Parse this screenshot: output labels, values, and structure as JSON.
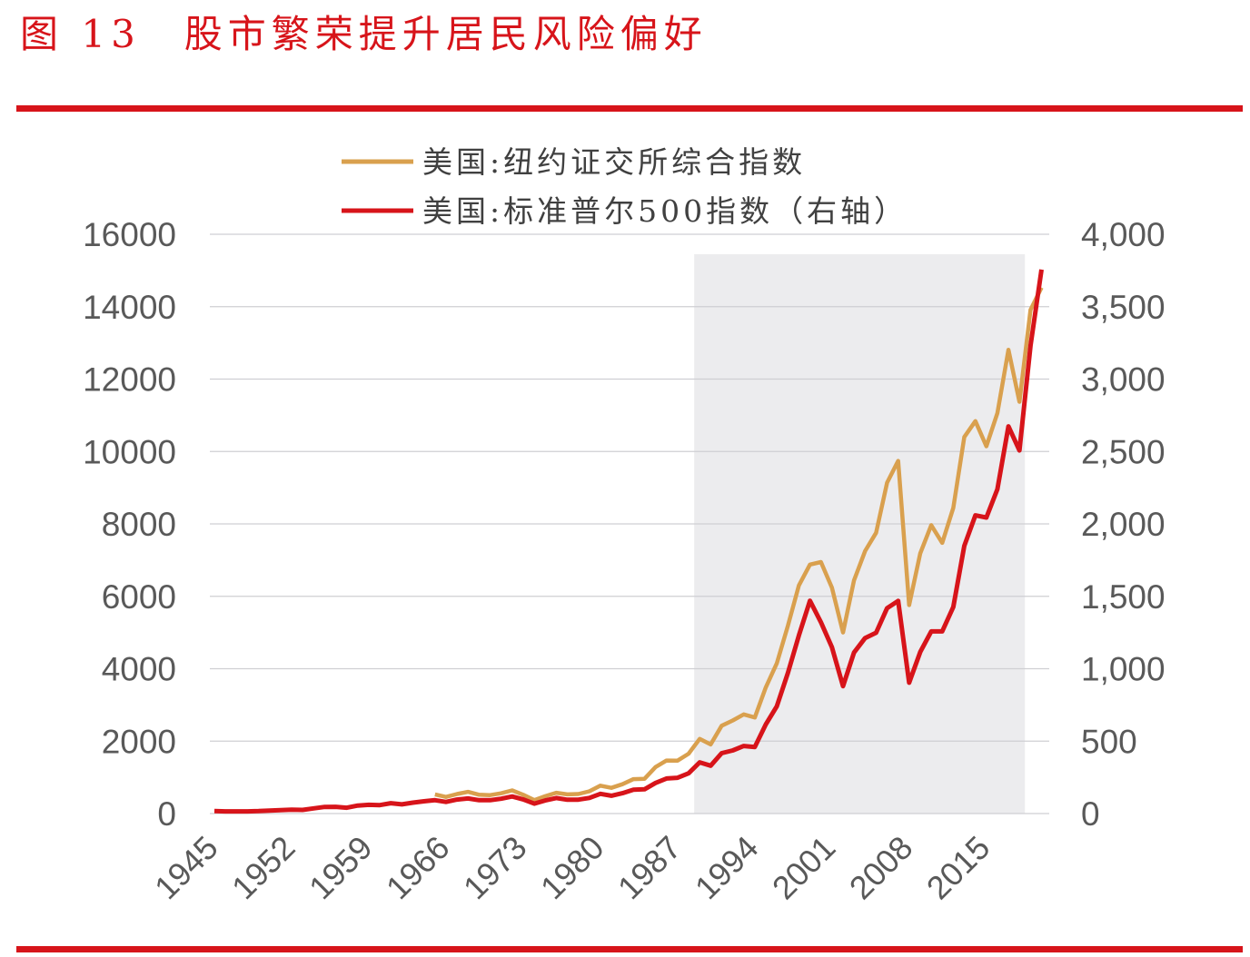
{
  "title": "图 13　股市繁荣提升居民风险偏好",
  "colors": {
    "accent": "#d7141a",
    "nyse": "#d9a04e",
    "sp500": "#d7141a",
    "shade": "#ececee",
    "grid": "#cfcfd3"
  },
  "chart_data": {
    "type": "line",
    "title": "",
    "xlabel": "",
    "ylabel_left": "",
    "ylabel_right": "",
    "grid": true,
    "legend_position": "top",
    "x_ticks": [
      "1945",
      "1952",
      "1959",
      "1966",
      "1973",
      "1980",
      "1987",
      "1994",
      "2001",
      "2008",
      "2015"
    ],
    "y_left": {
      "range": [
        0,
        16000
      ],
      "ticks": [
        "0",
        "2000",
        "4000",
        "6000",
        "8000",
        "10000",
        "12000",
        "14000",
        "16000"
      ]
    },
    "y_right": {
      "range": [
        0,
        4000
      ],
      "ticks": [
        "0",
        "500",
        "1,000",
        "1,500",
        "2,000",
        "2,500",
        "3,000",
        "3,500",
        "4,000"
      ]
    },
    "shaded_region": {
      "x_start": 1989,
      "x_end": 2018
    },
    "series": [
      {
        "name": "美国:纽约证交所综合指数",
        "axis": "left",
        "x_start": 1965,
        "values": [
          528,
          460,
          540,
          600,
          520,
          510,
          560,
          640,
          520,
          370,
          480,
          575,
          530,
          540,
          615,
          770,
          710,
          810,
          950,
          960,
          1285,
          1465,
          1461,
          1652,
          2062,
          1908,
          2426,
          2570,
          2739,
          2653,
          3485,
          4148,
          5186,
          6300,
          6877,
          6946,
          6236,
          5000,
          6440,
          7250,
          7754,
          9139,
          9740,
          5757,
          7185,
          7964,
          7477,
          8443,
          10400,
          10840,
          10144,
          11057,
          12809,
          11374,
          13913,
          14525
        ]
      },
      {
        "name": "美国:标准普尔500指数（右轴）",
        "axis": "right",
        "x_start": 1945,
        "values": [
          17.4,
          15.3,
          15.3,
          15.2,
          16.8,
          20.4,
          23.8,
          26.6,
          24.8,
          36.0,
          45.5,
          46.7,
          40.0,
          55.2,
          59.9,
          58.1,
          71.6,
          63.1,
          75.0,
          84.8,
          92.4,
          80.3,
          96.5,
          103.9,
          92.1,
          92.2,
          102.1,
          118.1,
          97.6,
          68.6,
          90.2,
          107.5,
          95.1,
          96.1,
          107.9,
          135.8,
          122.6,
          140.6,
          164.9,
          167.2,
          211.3,
          242.2,
          247.1,
          277.7,
          353.4,
          330.2,
          417.1,
          435.7,
          466.5,
          459.3,
          615.9,
          740.7,
          970.4,
          1229.2,
          1469.3,
          1320.3,
          1148.1,
          879.8,
          1111.9,
          1211.9,
          1248.3,
          1418.3,
          1468.4,
          903.3,
          1115.1,
          1257.6,
          1257.6,
          1426.2,
          1848.4,
          2058.9,
          2043.9,
          2238.8,
          2673.6,
          2506.9,
          3230.8,
          3756.1
        ]
      }
    ]
  }
}
